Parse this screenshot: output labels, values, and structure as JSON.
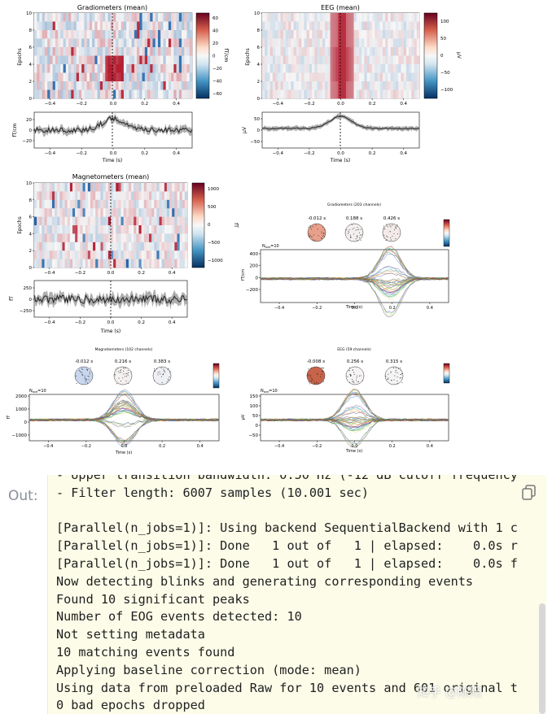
{
  "figures": {
    "grad_title": "Gradiometers (mean)",
    "eeg_title": "EEG (mean)",
    "mag_title": "Magnetometers (mean)",
    "grad_cbar": [
      "60",
      "40",
      "20",
      "0",
      "−20",
      "−40",
      "−60"
    ],
    "grad_cbar_unit": "fT/cm",
    "eeg_cbar": [
      "100",
      "50",
      "0",
      "−50",
      "−100"
    ],
    "eeg_cbar_unit": "µV",
    "mag_cbar": [
      "1000",
      "500",
      "0",
      "−500",
      "−1000"
    ],
    "mag_cbar_unit": "fT",
    "epochs_label": "Epochs",
    "epoch_ticks": [
      "10",
      "8",
      "6",
      "4",
      "2",
      "0"
    ],
    "time_ticks": [
      "−0.4",
      "−0.2",
      "0.0",
      "0.2",
      "0.4"
    ],
    "time_label": "Time (s)",
    "grad_trace_yticks": [
      "20",
      "0",
      "−20"
    ],
    "grad_trace_unit": "fT/cm",
    "eeg_trace_yticks": [
      "50",
      "0",
      "−50"
    ],
    "eeg_trace_unit": "µV",
    "mag_trace_yticks": [
      "250",
      "0",
      "−250"
    ],
    "mag_trace_unit": "fT",
    "joint_grad_title": "Gradiometers (203 channels)",
    "joint_grad_times": [
      "-0.012 s",
      "0.188 s",
      "0.426 s"
    ],
    "joint_grad_yticks": [
      "400",
      "200",
      "0",
      "−200"
    ],
    "joint_grad_unit": "fT/cm",
    "joint_mag_title": "Magnetometers (102 channels)",
    "joint_mag_times": [
      "-0.012 s",
      "0.216 s",
      "0.383 s"
    ],
    "joint_mag_yticks": [
      "2000",
      "1000",
      "0",
      "−1000"
    ],
    "joint_mag_unit": "fT",
    "joint_eeg_title": "EEG (59 channels)",
    "joint_eeg_times": [
      "-0.008 s",
      "0.256 s",
      "0.315 s"
    ],
    "joint_eeg_yticks": [
      "150",
      "100",
      "50",
      "0",
      "−50"
    ],
    "joint_eeg_unit": "µV",
    "nave": "N",
    "nave_sub": "ave",
    "nave_val": "=10",
    "time_ticks_joint": [
      "−0.4",
      "−0.2",
      "0.0",
      "0.2",
      "0.4"
    ]
  },
  "output": {
    "label": "Out:",
    "lines": [
      "- Upper transition bandwidth: 0.50 Hz (-12 dB cutoff frequency",
      "- Filter length: 6007 samples (10.001 sec)",
      "",
      "[Parallel(n_jobs=1)]: Using backend SequentialBackend with 1 c",
      "[Parallel(n_jobs=1)]: Done   1 out of   1 | elapsed:    0.0s r",
      "[Parallel(n_jobs=1)]: Done   1 out of   1 | elapsed:    0.0s f",
      "Now detecting blinks and generating corresponding events",
      "Found 10 significant peaks",
      "Number of EOG events detected: 10",
      "Not setting metadata",
      "10 matching events found",
      "Applying baseline correction (mode: mean)",
      "Using data from preloaded Raw for 10 events and 601 original t",
      "0 bad epochs dropped"
    ],
    "watermark": "知乎 @陈阳"
  }
}
